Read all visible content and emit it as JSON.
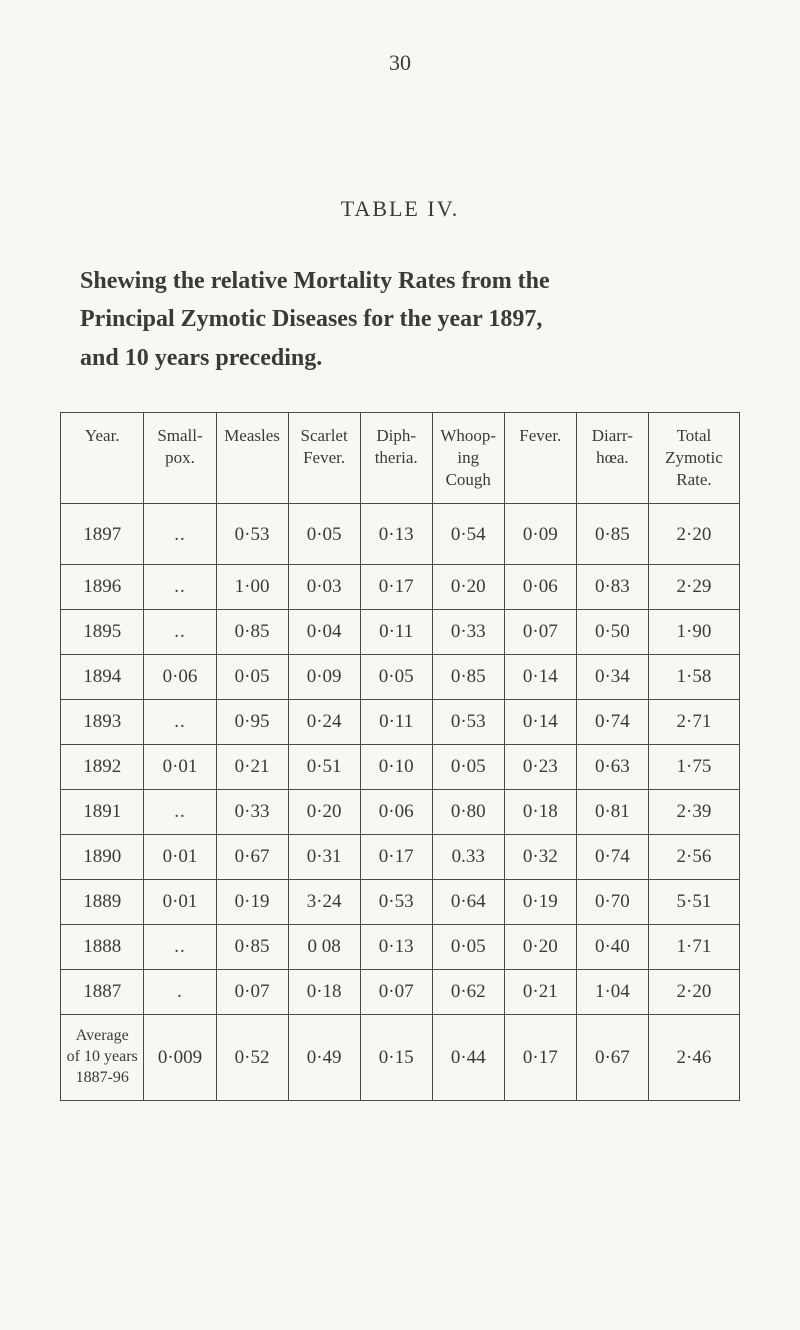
{
  "page_number": "30",
  "table_label": "TABLE IV.",
  "heading_parts": {
    "p1": "Shewing the relative Mortality Rates from the",
    "p2": "Principal Zymotic Diseases for the year 1897,",
    "p3": "and 10 years preceding."
  },
  "columns": [
    "Year.",
    "Small-\npox.",
    "Measles",
    "Scarlet\nFever.",
    "Diph-\ntheria.",
    "Whoop-\ning\nCough",
    "Fever.",
    "Diarr-\nhœa.",
    "Total\nZymotic\nRate."
  ],
  "rows": [
    {
      "year": "1897",
      "cells": [
        "..",
        "0·53",
        "0·05",
        "0·13",
        "0·54",
        "0·09",
        "0·85",
        "2·20"
      ]
    },
    {
      "year": "1896",
      "cells": [
        "..",
        "1·00",
        "0·03",
        "0·17",
        "0·20",
        "0·06",
        "0·83",
        "2·29"
      ]
    },
    {
      "year": "1895",
      "cells": [
        "..",
        "0·85",
        "0·04",
        "0·11",
        "0·33",
        "0·07",
        "0·50",
        "1·90"
      ]
    },
    {
      "year": "1894",
      "cells": [
        "0·06",
        "0·05",
        "0·09",
        "0·05",
        "0·85",
        "0·14",
        "0·34",
        "1·58"
      ]
    },
    {
      "year": "1893",
      "cells": [
        "..",
        "0·95",
        "0·24",
        "0·11",
        "0·53",
        "0·14",
        "0·74",
        "2·71"
      ]
    },
    {
      "year": "1892",
      "cells": [
        "0·01",
        "0·21",
        "0·51",
        "0·10",
        "0·05",
        "0·23",
        "0·63",
        "1·75"
      ]
    },
    {
      "year": "1891",
      "cells": [
        "..",
        "0·33",
        "0·20",
        "0·06",
        "0·80",
        "0·18",
        "0·81",
        "2·39"
      ]
    },
    {
      "year": "1890",
      "cells": [
        "0·01",
        "0·67",
        "0·31",
        "0·17",
        "0.33",
        "0·32",
        "0·74",
        "2·56"
      ]
    },
    {
      "year": "1889",
      "cells": [
        "0·01",
        "0·19",
        "3·24",
        "0·53",
        "0·64",
        "0·19",
        "0·70",
        "5·51"
      ]
    },
    {
      "year": "1888",
      "cells": [
        "..",
        "0·85",
        "0 08",
        "0·13",
        "0·05",
        "0·20",
        "0·40",
        "1·71"
      ]
    },
    {
      "year": "1887",
      "cells": [
        ".",
        "0·07",
        "0·18",
        "0·07",
        "0·62",
        "0·21",
        "1·04",
        "2·20"
      ]
    }
  ],
  "average_row": {
    "label": "Average\nof 10 years\n1887-96",
    "cells": [
      "0·009",
      "0·52",
      "0·49",
      "0·15",
      "0·44",
      "0·17",
      "0·67",
      "2·46"
    ]
  },
  "colors": {
    "background": "#f8f7f3",
    "text": "#3a3a38",
    "border": "#4a4a46"
  },
  "fonts": {
    "body_family": "Times New Roman",
    "page_number_size": 22,
    "table_label_size": 22,
    "heading_size": 24,
    "table_size": 19,
    "header_size": 17
  }
}
